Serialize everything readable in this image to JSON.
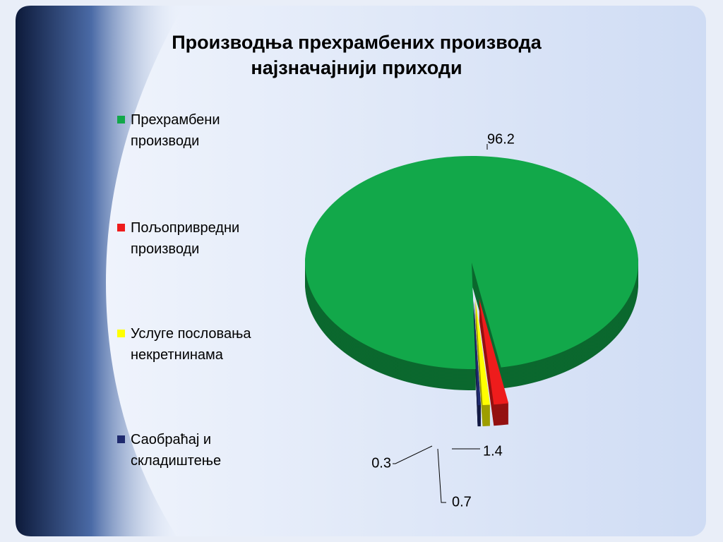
{
  "chart_data": {
    "type": "pie",
    "title": "Производња прехрамбених производа најзначајнији приходи",
    "categories": [
      "Прехрамбени производи",
      "Пољопривредни производи",
      "Услуге пословања некретнинама",
      "Саобраћај и складиштење"
    ],
    "values": [
      96.2,
      1.4,
      0.7,
      0.3
    ],
    "colors": [
      "#12a84a",
      "#ee1c1c",
      "#ffff00",
      "#1f2a6e"
    ],
    "legend": "left"
  }
}
